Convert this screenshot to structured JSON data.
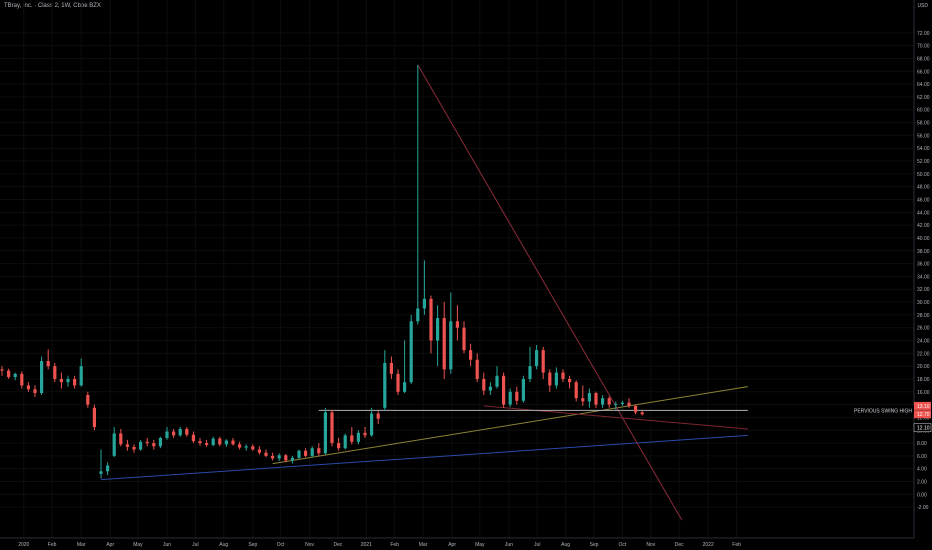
{
  "title": "TBray, Inc. · Class 2, 1W, Cboe BZX",
  "chart_data": {
    "type": "candlestick",
    "currency": "USD",
    "ylim": [
      -4,
      74
    ],
    "y_ticks": [
      -2,
      0,
      2,
      4,
      6,
      8,
      10,
      12,
      14,
      16,
      18,
      20,
      22,
      24,
      26,
      28,
      30,
      32,
      34,
      36,
      38,
      40,
      42,
      44,
      46,
      48,
      50,
      52,
      54,
      56,
      58,
      60,
      62,
      64,
      66,
      68,
      70,
      72
    ],
    "x_ticks": [
      "Dec",
      "2020",
      "Feb",
      "Mar",
      "Apr",
      "May",
      "Jun",
      "Jul",
      "Aug",
      "Sep",
      "Oct",
      "Nov",
      "Dec",
      "2021",
      "Feb",
      "Mar",
      "Apr",
      "May",
      "Jun",
      "Jul",
      "Aug",
      "Sep",
      "Oct",
      "Nov",
      "Dec",
      "2022",
      "Feb"
    ],
    "x_tick_index": [
      -1,
      3.3,
      7.6,
      12,
      16.4,
      20.6,
      25,
      29.3,
      33.6,
      38,
      42.2,
      46.6,
      50.9,
      55.2,
      59.5,
      63.8,
      68.2,
      72.4,
      76.8,
      81.1,
      85.4,
      89.7,
      94,
      98.3,
      102.6,
      107,
      111.3
    ],
    "candles": [
      [
        19.5,
        20,
        18.5,
        19.3
      ],
      [
        19.3,
        19.6,
        18,
        18.3
      ],
      [
        18.3,
        19,
        17.8,
        18.8
      ],
      [
        18.8,
        19.2,
        16.5,
        17
      ],
      [
        17,
        17.5,
        16,
        16.4
      ],
      [
        16.4,
        17,
        15.2,
        15.8
      ],
      [
        15.8,
        21.5,
        15.5,
        20.8
      ],
      [
        20.8,
        22.6,
        19.5,
        20
      ],
      [
        20,
        20.5,
        17.5,
        18
      ],
      [
        18,
        19,
        16.5,
        17.5
      ],
      [
        17.5,
        18.5,
        16.8,
        18
      ],
      [
        18,
        18.5,
        16.5,
        17
      ],
      [
        17,
        21.2,
        16.8,
        20
      ],
      [
        15.5,
        16,
        13.5,
        14
      ],
      [
        13.5,
        14,
        10,
        10.5
      ],
      [
        3.2,
        7,
        2.5,
        3.6
      ],
      [
        3.6,
        5,
        3,
        4.5
      ],
      [
        6,
        10.5,
        5.8,
        9.5
      ],
      [
        9.5,
        10.2,
        7.5,
        7.8
      ],
      [
        7.8,
        8.5,
        6.8,
        7.4
      ],
      [
        7.4,
        7.8,
        6.5,
        7
      ],
      [
        7,
        8.5,
        6.8,
        8.2
      ],
      [
        8.2,
        8.8,
        7.5,
        8
      ],
      [
        8,
        8.5,
        7,
        7.5
      ],
      [
        7.5,
        9,
        7.2,
        8.8
      ],
      [
        8.8,
        10.5,
        8.5,
        9.8
      ],
      [
        9.8,
        10.2,
        8.8,
        9.2
      ],
      [
        9.2,
        10.5,
        9,
        10.2
      ],
      [
        10.2,
        10.5,
        9,
        9.3
      ],
      [
        9.3,
        9.8,
        8,
        8.3
      ],
      [
        8.3,
        8.8,
        7.6,
        8
      ],
      [
        8,
        8.5,
        7.4,
        7.7
      ],
      [
        7.7,
        9,
        7.5,
        8.7
      ],
      [
        8.7,
        9,
        7.5,
        7.8
      ],
      [
        7.8,
        8.6,
        7.4,
        8.4
      ],
      [
        8.4,
        8.8,
        7.6,
        7.8
      ],
      [
        7.8,
        8.2,
        7,
        7.3
      ],
      [
        7.3,
        7.8,
        6.8,
        7.5
      ],
      [
        7.5,
        7.8,
        6.8,
        7
      ],
      [
        7,
        7.5,
        6.2,
        6.5
      ],
      [
        6.5,
        7,
        5.8,
        6
      ],
      [
        6,
        6.5,
        5.3,
        5.6
      ],
      [
        5.6,
        6.4,
        5.2,
        6.1
      ],
      [
        6.1,
        6.3,
        5,
        5.3
      ],
      [
        5.3,
        6,
        4.8,
        5.7
      ],
      [
        5.7,
        7,
        5.5,
        6.8
      ],
      [
        6.8,
        7.2,
        5.8,
        6
      ],
      [
        6,
        7.5,
        5.8,
        7.2
      ],
      [
        7.2,
        8,
        6,
        6.4
      ],
      [
        6.4,
        13.5,
        6.2,
        12.8
      ],
      [
        12.8,
        13.2,
        7.5,
        8
      ],
      [
        8,
        8.8,
        6.8,
        7.2
      ],
      [
        7.2,
        9.5,
        7,
        9.2
      ],
      [
        9.2,
        10.5,
        7.8,
        8.2
      ],
      [
        8.2,
        10,
        7.8,
        9.6
      ],
      [
        9.6,
        10.5,
        8.8,
        9.2
      ],
      [
        9.2,
        13.5,
        9,
        12.6
      ],
      [
        12.6,
        13,
        11,
        11.8
      ],
      [
        13.5,
        22.5,
        13,
        20.5
      ],
      [
        20.5,
        21.5,
        18,
        18.8
      ],
      [
        18.8,
        19.5,
        15.5,
        16
      ],
      [
        16,
        24,
        15.8,
        17.5
      ],
      [
        17.5,
        28,
        17.2,
        27
      ],
      [
        27,
        67,
        26.5,
        29
      ],
      [
        29,
        36.5,
        28,
        30.5
      ],
      [
        30.5,
        31,
        22,
        24
      ],
      [
        24,
        29.5,
        20,
        27.5
      ],
      [
        27.5,
        30,
        18,
        19.5
      ],
      [
        19.5,
        31.5,
        18.8,
        27
      ],
      [
        27,
        29.5,
        24,
        26
      ],
      [
        26,
        27,
        22,
        22.5
      ],
      [
        22.5,
        23.5,
        20,
        21
      ],
      [
        21,
        22,
        17.5,
        18
      ],
      [
        18,
        19,
        15.5,
        16.2
      ],
      [
        16.2,
        17.5,
        15.5,
        16.8
      ],
      [
        16.8,
        20,
        16.5,
        18.5
      ],
      [
        18.5,
        19,
        13.5,
        14
      ],
      [
        14,
        16.5,
        13.6,
        16
      ],
      [
        16,
        16.8,
        14,
        14.6
      ],
      [
        14.6,
        18.5,
        14.3,
        18
      ],
      [
        18,
        23,
        17.5,
        20
      ],
      [
        20,
        23.3,
        19.5,
        22.5
      ],
      [
        22.5,
        23,
        18,
        19
      ],
      [
        19,
        19.5,
        16,
        17
      ],
      [
        17,
        19.8,
        16.5,
        19
      ],
      [
        19,
        19.5,
        17.5,
        18
      ],
      [
        18,
        18.5,
        16.5,
        17.5
      ],
      [
        17.5,
        17.8,
        14.5,
        15
      ],
      [
        15,
        17,
        13.8,
        14.5
      ],
      [
        14.5,
        16.5,
        13.5,
        15.8
      ],
      [
        15.8,
        16,
        13.5,
        14
      ],
      [
        14,
        15.5,
        13.5,
        15
      ],
      [
        15,
        15.3,
        13.5,
        14
      ],
      [
        14,
        14.5,
        13.2,
        14.1
      ],
      [
        14.1,
        14.6,
        13.8,
        14.3
      ],
      [
        14.3,
        15,
        13.5,
        13.8
      ],
      [
        13.8,
        14,
        12.5,
        12.8
      ],
      [
        12.8,
        13,
        12.3,
        12.5
      ]
    ],
    "lines": [
      {
        "from": [
          15,
          2.3
        ],
        "to": [
          113,
          9.2
        ],
        "color": "#2b4aa8"
      },
      {
        "from": [
          41,
          4.8
        ],
        "to": [
          113,
          16.8
        ],
        "color": "#8c8436"
      },
      {
        "from": [
          63,
          67
        ],
        "to": [
          103,
          -4
        ],
        "color": "#8b2c3a"
      },
      {
        "from": [
          73,
          13.8
        ],
        "to": [
          113,
          10.2
        ],
        "color": "#7e2630"
      },
      {
        "from": [
          48,
          13.1
        ],
        "to": [
          113,
          13.1
        ],
        "color": "#b0b0b0"
      }
    ],
    "annotation": "PERVIOUS SWING HIGH",
    "price_labels": [
      "13.10",
      "12.70",
      "12.10"
    ],
    "up_color": "#26a69a",
    "down_color": "#ef5350"
  }
}
